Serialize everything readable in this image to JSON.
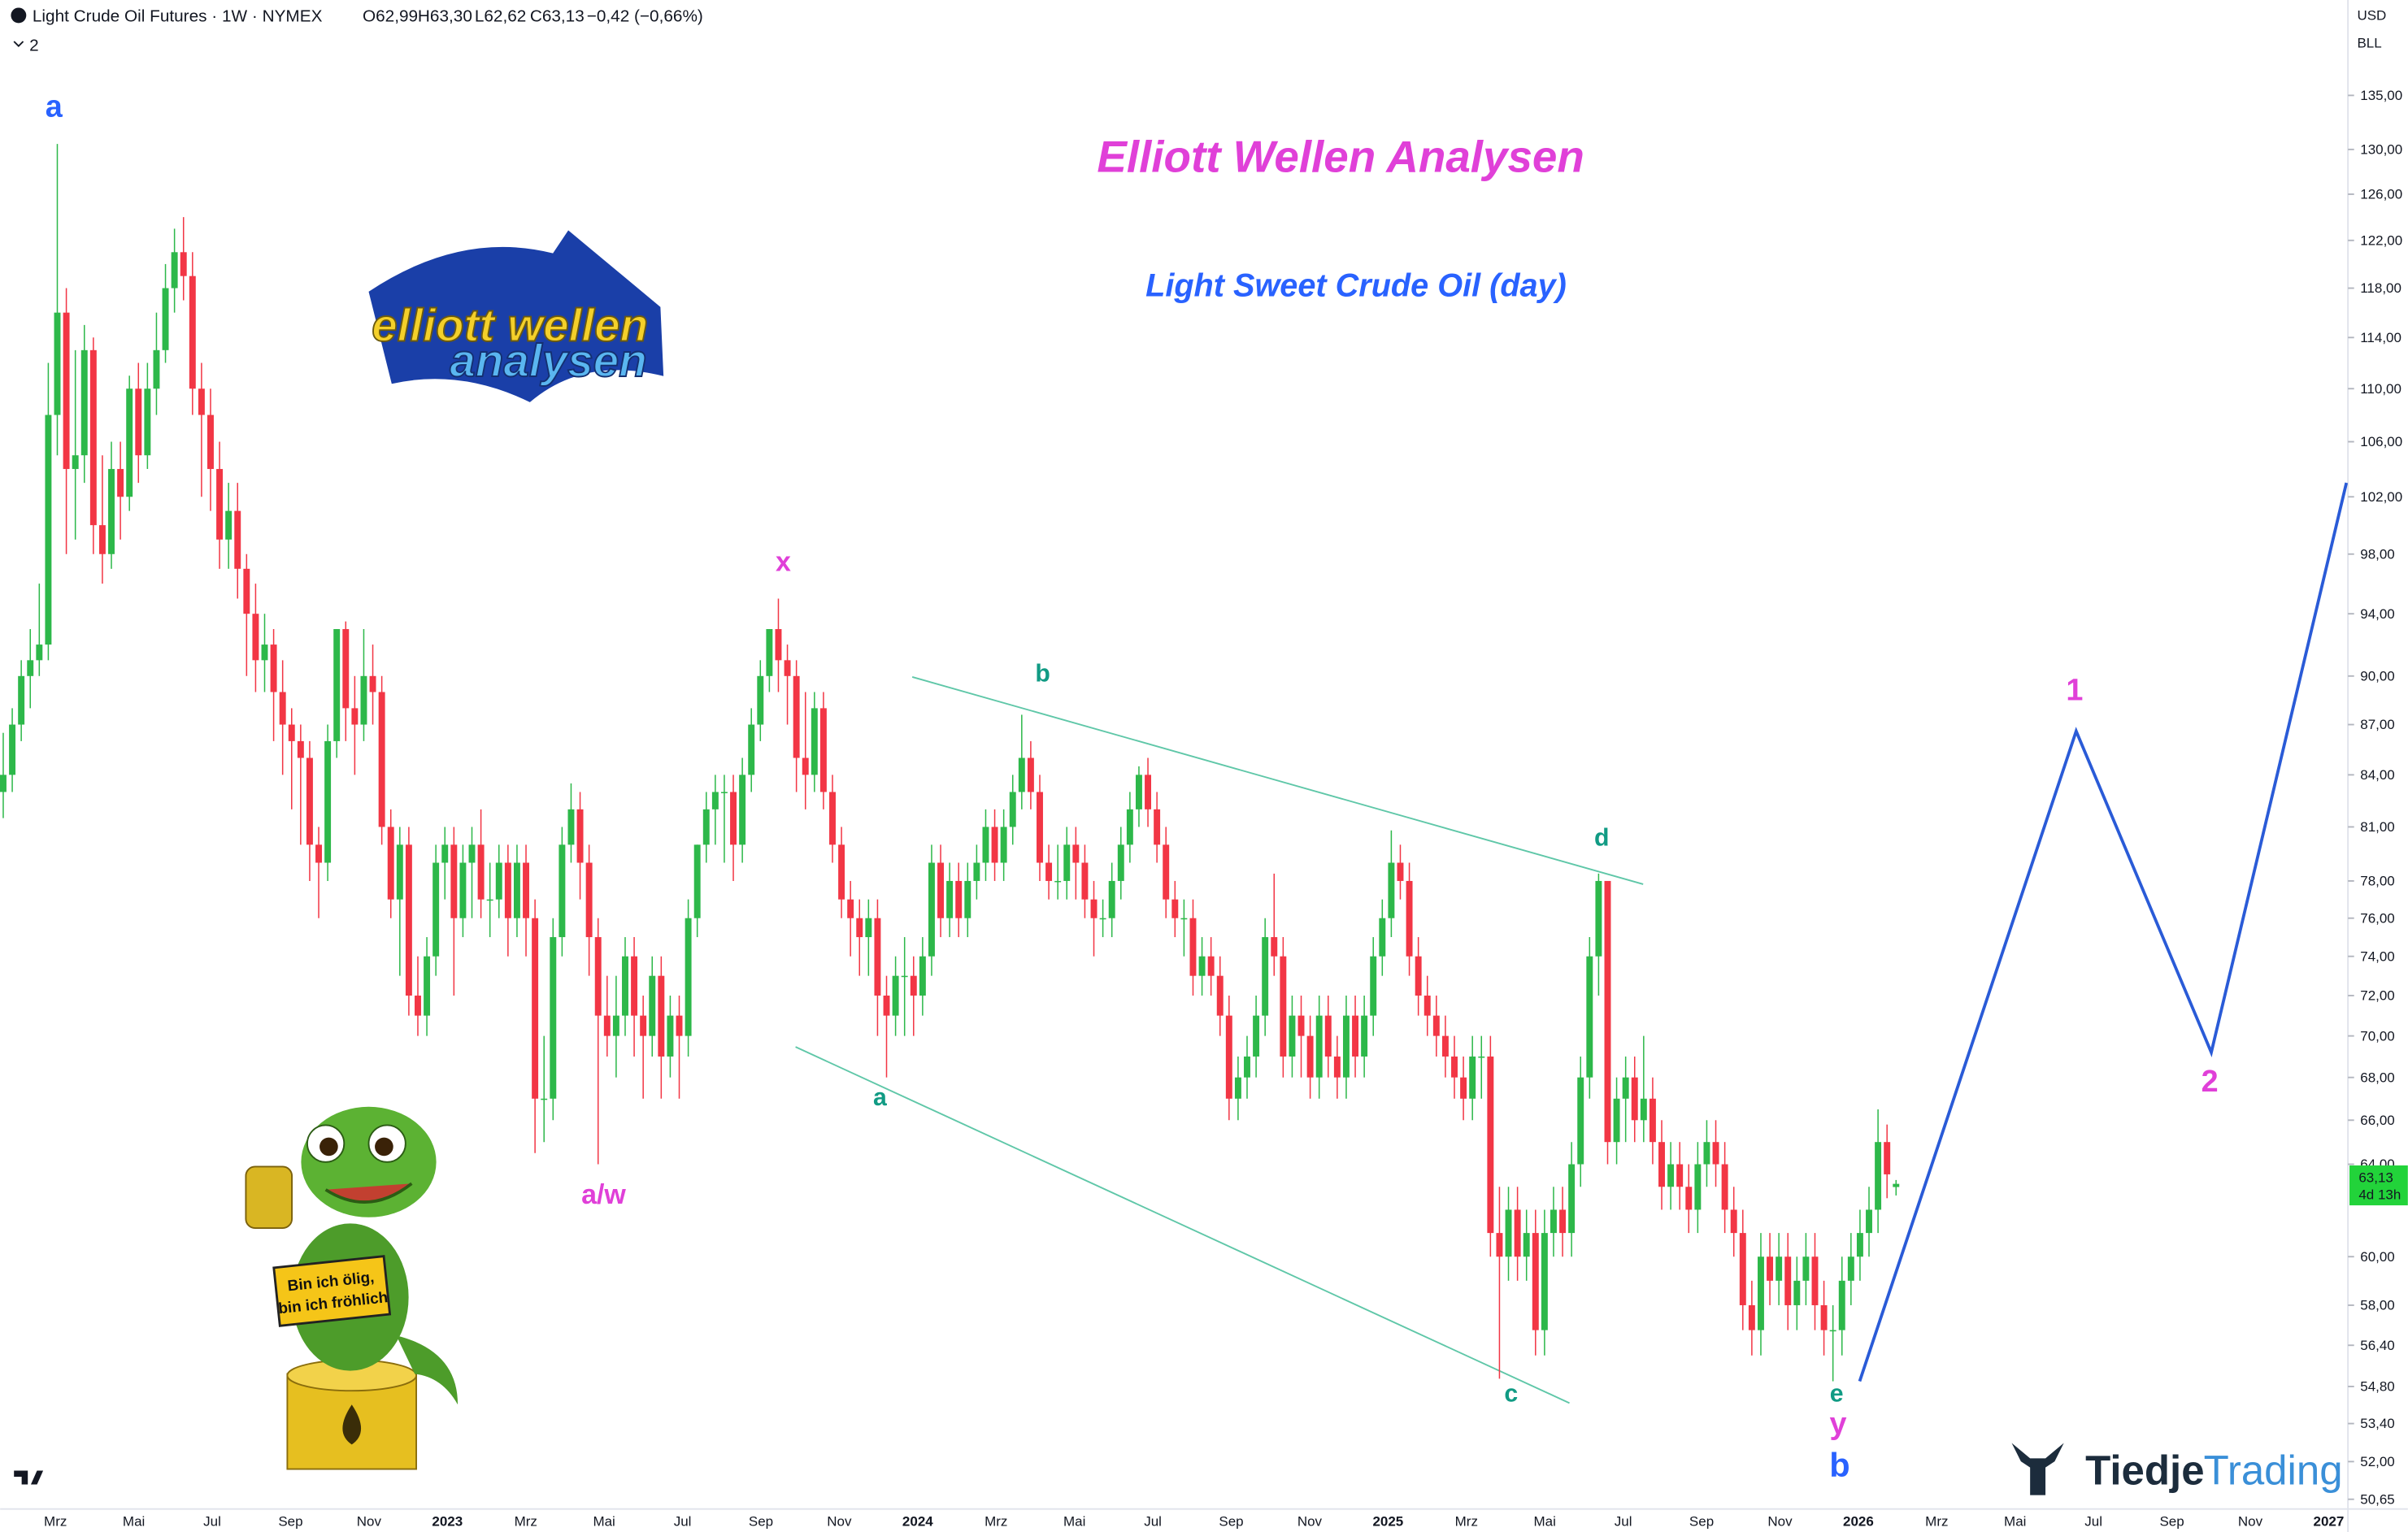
{
  "header": {
    "symbol": "Light Crude Oil Futures · 1W · NYMEX",
    "open": "O62,99",
    "high": "H63,30",
    "low": "L62,62",
    "close": "C63,13",
    "change": "−0,42 (−0,66%)",
    "indicator_count": "2",
    "currency": "USD",
    "unit": "BLL"
  },
  "chart_data": {
    "type": "candlestick",
    "title": "Elliott Wellen Analysen",
    "subtitle": "Light Sweet Crude Oil (day)",
    "log_scale": true,
    "grid": false,
    "up_color": "#2db84a",
    "down_color": "#f23645",
    "ylim": [
      50.2,
      144.3
    ],
    "yticks": [
      {
        "value": 135,
        "label": "135,00"
      },
      {
        "value": 130,
        "label": "130,00"
      },
      {
        "value": 126,
        "label": "126,00"
      },
      {
        "value": 122,
        "label": "122,00"
      },
      {
        "value": 118,
        "label": "118,00"
      },
      {
        "value": 114,
        "label": "114,00"
      },
      {
        "value": 110,
        "label": "110,00"
      },
      {
        "value": 106,
        "label": "106,00"
      },
      {
        "value": 102,
        "label": "102,00"
      },
      {
        "value": 98,
        "label": "98,00"
      },
      {
        "value": 94,
        "label": "94,00"
      },
      {
        "value": 90,
        "label": "90,00"
      },
      {
        "value": 87,
        "label": "87,00"
      },
      {
        "value": 84,
        "label": "84,00"
      },
      {
        "value": 81,
        "label": "81,00"
      },
      {
        "value": 78,
        "label": "78,00"
      },
      {
        "value": 76,
        "label": "76,00"
      },
      {
        "value": 74,
        "label": "74,00"
      },
      {
        "value": 72,
        "label": "72,00"
      },
      {
        "value": 70,
        "label": "70,00"
      },
      {
        "value": 68,
        "label": "68,00"
      },
      {
        "value": 66,
        "label": "66,00"
      },
      {
        "value": 64,
        "label": "64,00"
      },
      {
        "value": 60,
        "label": "60,00"
      },
      {
        "value": 58,
        "label": "58,00"
      },
      {
        "value": 56.4,
        "label": "56,40"
      },
      {
        "value": 54.8,
        "label": "54,80"
      },
      {
        "value": 53.4,
        "label": "53,40"
      },
      {
        "value": 52,
        "label": "52,00"
      },
      {
        "value": 50.65,
        "label": "50,65"
      }
    ],
    "xtick_labels": [
      "Mrz",
      "Mai",
      "Jul",
      "Sep",
      "Nov",
      "2023",
      "Mrz",
      "Mai",
      "Jul",
      "Sep",
      "Nov",
      "2024",
      "Mrz",
      "Mai",
      "Jul",
      "Sep",
      "Nov",
      "2025",
      "Mrz",
      "Mai",
      "Jul",
      "Sep",
      "Nov",
      "2026",
      "Mrz",
      "Mai",
      "Jul",
      "Sep",
      "Nov",
      "2027"
    ],
    "ohlc": [
      [
        83,
        86.5,
        81.5,
        84
      ],
      [
        84,
        88,
        83,
        87
      ],
      [
        87,
        91,
        86,
        90
      ],
      [
        90,
        93,
        88,
        91
      ],
      [
        91,
        96,
        90,
        92
      ],
      [
        92,
        112,
        91,
        108
      ],
      [
        108,
        130.5,
        105,
        116
      ],
      [
        116,
        118,
        98,
        104
      ],
      [
        104,
        113,
        99,
        105
      ],
      [
        105,
        115,
        103,
        113
      ],
      [
        113,
        114,
        98,
        100
      ],
      [
        100,
        105,
        96,
        98
      ],
      [
        98,
        106,
        97,
        104
      ],
      [
        104,
        106,
        99,
        102
      ],
      [
        102,
        111,
        101,
        110
      ],
      [
        110,
        112,
        103,
        105
      ],
      [
        105,
        112,
        104,
        110
      ],
      [
        110,
        116,
        108,
        113
      ],
      [
        113,
        120,
        112,
        118
      ],
      [
        118,
        123,
        116,
        121
      ],
      [
        121,
        124,
        117,
        119
      ],
      [
        119,
        121,
        108,
        110
      ],
      [
        110,
        112,
        102,
        108
      ],
      [
        108,
        110,
        101,
        104
      ],
      [
        104,
        106,
        97,
        99
      ],
      [
        99,
        103,
        97,
        101
      ],
      [
        101,
        103,
        95,
        97
      ],
      [
        97,
        98,
        90,
        94
      ],
      [
        94,
        96,
        89,
        91
      ],
      [
        91,
        94,
        89,
        92
      ],
      [
        92,
        93,
        86,
        89
      ],
      [
        89,
        91,
        84,
        87
      ],
      [
        87,
        88,
        82,
        86
      ],
      [
        86,
        87,
        80,
        85
      ],
      [
        85,
        86,
        78,
        80
      ],
      [
        80,
        81,
        76,
        79
      ],
      [
        79,
        87,
        78,
        86
      ],
      [
        86,
        93,
        85,
        93
      ],
      [
        93,
        93.5,
        86,
        88
      ],
      [
        88,
        90,
        84,
        87
      ],
      [
        87,
        93,
        86,
        90
      ],
      [
        90,
        92,
        87,
        89
      ],
      [
        89,
        90,
        80,
        81
      ],
      [
        81,
        82,
        76,
        77
      ],
      [
        77,
        81,
        73,
        80
      ],
      [
        80,
        81,
        71,
        72
      ],
      [
        72,
        74,
        70,
        71
      ],
      [
        71,
        75,
        70,
        74
      ],
      [
        74,
        80,
        73,
        79
      ],
      [
        79,
        81,
        77,
        80
      ],
      [
        80,
        81,
        72,
        76
      ],
      [
        76,
        80,
        75,
        79
      ],
      [
        79,
        81,
        76,
        80
      ],
      [
        80,
        82,
        76,
        77
      ],
      [
        77,
        79,
        75,
        77
      ],
      [
        77,
        80,
        76,
        79
      ],
      [
        79,
        80,
        74,
        76
      ],
      [
        76,
        80,
        75,
        79
      ],
      [
        79,
        80,
        74,
        76
      ],
      [
        76,
        77,
        64.5,
        67
      ],
      [
        67,
        70,
        65,
        67
      ],
      [
        67,
        76,
        66,
        75
      ],
      [
        75,
        81,
        74,
        80
      ],
      [
        80,
        83.5,
        79,
        82
      ],
      [
        82,
        83,
        77,
        79
      ],
      [
        79,
        80,
        73,
        75
      ],
      [
        75,
        76,
        64,
        71
      ],
      [
        71,
        73,
        69,
        70
      ],
      [
        70,
        73,
        68,
        71
      ],
      [
        71,
        75,
        70,
        74
      ],
      [
        74,
        75,
        69,
        71
      ],
      [
        71,
        72,
        67,
        70
      ],
      [
        70,
        74,
        69,
        73
      ],
      [
        73,
        74,
        67,
        69
      ],
      [
        69,
        72,
        68,
        71
      ],
      [
        71,
        72,
        67,
        70
      ],
      [
        70,
        77,
        69,
        76
      ],
      [
        76,
        80,
        75,
        80
      ],
      [
        80,
        83,
        79,
        82
      ],
      [
        82,
        84,
        80,
        83
      ],
      [
        83,
        84,
        79,
        83
      ],
      [
        83,
        84,
        78,
        80
      ],
      [
        80,
        85,
        79,
        84
      ],
      [
        84,
        88,
        83,
        87
      ],
      [
        87,
        91,
        86,
        90
      ],
      [
        90,
        93,
        89,
        93
      ],
      [
        93,
        95,
        89,
        91
      ],
      [
        91,
        92,
        87,
        90
      ],
      [
        90,
        91,
        83,
        85
      ],
      [
        85,
        89,
        82,
        84
      ],
      [
        84,
        89,
        83,
        88
      ],
      [
        88,
        89,
        82,
        83
      ],
      [
        83,
        84,
        79,
        80
      ],
      [
        80,
        81,
        76,
        77
      ],
      [
        77,
        78,
        74,
        76
      ],
      [
        76,
        77,
        73,
        75
      ],
      [
        75,
        77,
        73,
        76
      ],
      [
        76,
        77,
        70,
        72
      ],
      [
        72,
        73,
        68,
        71
      ],
      [
        71,
        74,
        70,
        73
      ],
      [
        73,
        75,
        70,
        73
      ],
      [
        73,
        74,
        70,
        72
      ],
      [
        72,
        75,
        71,
        74
      ],
      [
        74,
        80,
        73,
        79
      ],
      [
        79,
        80,
        75,
        76
      ],
      [
        76,
        79,
        75,
        78
      ],
      [
        78,
        79,
        75,
        76
      ],
      [
        76,
        79,
        75,
        78
      ],
      [
        78,
        80,
        77,
        79
      ],
      [
        79,
        82,
        78,
        81
      ],
      [
        81,
        82,
        78,
        79
      ],
      [
        79,
        82,
        78,
        81
      ],
      [
        81,
        84,
        80,
        83
      ],
      [
        83,
        87.6,
        82,
        85
      ],
      [
        85,
        86,
        82,
        83
      ],
      [
        83,
        84,
        78,
        79
      ],
      [
        79,
        80,
        77,
        78
      ],
      [
        78,
        80,
        77,
        78
      ],
      [
        78,
        81,
        77,
        80
      ],
      [
        80,
        81,
        77,
        79
      ],
      [
        79,
        80,
        76,
        77
      ],
      [
        77,
        78,
        74,
        76
      ],
      [
        76,
        77,
        75,
        76
      ],
      [
        76,
        79,
        75,
        78
      ],
      [
        78,
        81,
        77,
        80
      ],
      [
        80,
        83,
        79,
        82
      ],
      [
        82,
        84.5,
        81,
        84
      ],
      [
        84,
        85,
        81,
        82
      ],
      [
        82,
        83,
        79,
        80
      ],
      [
        80,
        81,
        76,
        77
      ],
      [
        77,
        78,
        75,
        76
      ],
      [
        76,
        77,
        74,
        76
      ],
      [
        76,
        77,
        72,
        73
      ],
      [
        73,
        75,
        72,
        74
      ],
      [
        74,
        75,
        72,
        73
      ],
      [
        73,
        74,
        70,
        71
      ],
      [
        71,
        72,
        66,
        67
      ],
      [
        67,
        69,
        66,
        68
      ],
      [
        68,
        70,
        67,
        69
      ],
      [
        69,
        72,
        68,
        71
      ],
      [
        71,
        76,
        70,
        75
      ],
      [
        75,
        78.4,
        73,
        74
      ],
      [
        74,
        75,
        68,
        69
      ],
      [
        69,
        72,
        68,
        71
      ],
      [
        71,
        72,
        68,
        70
      ],
      [
        70,
        71,
        67,
        68
      ],
      [
        68,
        72,
        67,
        71
      ],
      [
        71,
        72,
        68,
        69
      ],
      [
        69,
        70,
        67,
        68
      ],
      [
        68,
        72,
        67,
        71
      ],
      [
        71,
        72,
        68,
        69
      ],
      [
        69,
        72,
        68,
        71
      ],
      [
        71,
        75,
        70,
        74
      ],
      [
        74,
        77,
        73,
        76
      ],
      [
        76,
        80.8,
        75,
        79
      ],
      [
        79,
        80,
        77,
        78
      ],
      [
        78,
        79,
        73,
        74
      ],
      [
        74,
        75,
        71,
        72
      ],
      [
        72,
        73,
        70,
        71
      ],
      [
        71,
        72,
        69,
        70
      ],
      [
        70,
        71,
        68,
        69
      ],
      [
        69,
        70,
        67,
        68
      ],
      [
        68,
        69,
        66,
        67
      ],
      [
        67,
        70,
        66,
        69
      ],
      [
        69,
        70,
        67,
        69
      ],
      [
        69,
        70,
        60,
        61
      ],
      [
        61,
        63,
        55.1,
        60
      ],
      [
        60,
        63,
        59,
        62
      ],
      [
        62,
        63,
        59,
        60
      ],
      [
        60,
        62,
        59,
        61
      ],
      [
        61,
        62,
        56,
        57
      ],
      [
        57,
        62,
        56,
        61
      ],
      [
        61,
        63,
        60,
        62
      ],
      [
        62,
        63,
        60,
        61
      ],
      [
        61,
        65,
        60,
        64
      ],
      [
        64,
        69,
        63,
        68
      ],
      [
        68,
        75,
        67,
        74
      ],
      [
        74,
        78.4,
        72,
        78
      ],
      [
        78,
        78,
        64,
        65
      ],
      [
        65,
        68,
        64,
        67
      ],
      [
        67,
        69,
        65,
        68
      ],
      [
        68,
        69,
        65,
        66
      ],
      [
        66,
        70,
        65,
        67
      ],
      [
        67,
        68,
        64,
        65
      ],
      [
        65,
        66,
        62,
        63
      ],
      [
        63,
        65,
        62,
        64
      ],
      [
        64,
        65,
        62,
        63
      ],
      [
        63,
        64,
        61,
        62
      ],
      [
        62,
        65,
        61,
        64
      ],
      [
        64,
        66,
        63,
        65
      ],
      [
        65,
        66,
        63,
        64
      ],
      [
        64,
        65,
        61,
        62
      ],
      [
        62,
        63,
        60,
        61
      ],
      [
        61,
        62,
        57,
        58
      ],
      [
        58,
        59,
        56,
        57
      ],
      [
        57,
        61,
        56,
        60
      ],
      [
        60,
        61,
        58,
        59
      ],
      [
        59,
        61,
        58,
        60
      ],
      [
        60,
        61,
        57,
        58
      ],
      [
        58,
        60,
        57,
        59
      ],
      [
        59,
        61,
        58,
        60
      ],
      [
        60,
        61,
        57,
        58
      ],
      [
        58,
        59,
        56,
        57
      ],
      [
        57,
        58,
        55,
        57
      ],
      [
        57,
        60,
        56,
        59
      ],
      [
        59,
        61,
        58,
        60
      ],
      [
        60,
        62,
        59,
        61
      ],
      [
        61,
        63,
        60,
        62
      ],
      [
        62,
        66.5,
        61,
        65
      ],
      [
        65,
        65.8,
        62.5,
        63.55
      ],
      [
        62.99,
        63.3,
        62.62,
        63.13
      ]
    ],
    "last_price": {
      "value": 63.13,
      "label": "63,13",
      "countdown": "4d 13h",
      "color": "#22d33a"
    },
    "projection": {
      "color": "#2a5bd7",
      "values": [
        55,
        86.6,
        69.2,
        103
      ]
    },
    "channel_color": "#5fc7a8",
    "annotations": [
      {
        "text": "a",
        "color": "#2962ff"
      },
      {
        "text": "x",
        "color": "#e040d8"
      },
      {
        "text": "a/w",
        "color": "#e040d8"
      },
      {
        "text": "a",
        "color": "#119b84"
      },
      {
        "text": "b",
        "color": "#119b84"
      },
      {
        "text": "c",
        "color": "#119b84"
      },
      {
        "text": "d",
        "color": "#119b84"
      },
      {
        "text": "e",
        "color": "#119b84"
      },
      {
        "text": "y",
        "color": "#e040d8"
      },
      {
        "text": "b",
        "color": "#2962ff"
      },
      {
        "text": "1",
        "color": "#e040d8"
      },
      {
        "text": "2",
        "color": "#e040d8"
      }
    ]
  },
  "logo": {
    "line1": "elliott wellen",
    "line2": "analysen"
  },
  "mascot": {
    "sign_lines": [
      "Bin ich ölig,",
      "bin ich fröhlich"
    ]
  },
  "brand": {
    "part1": "Tiedje",
    "part2": "Trading"
  }
}
